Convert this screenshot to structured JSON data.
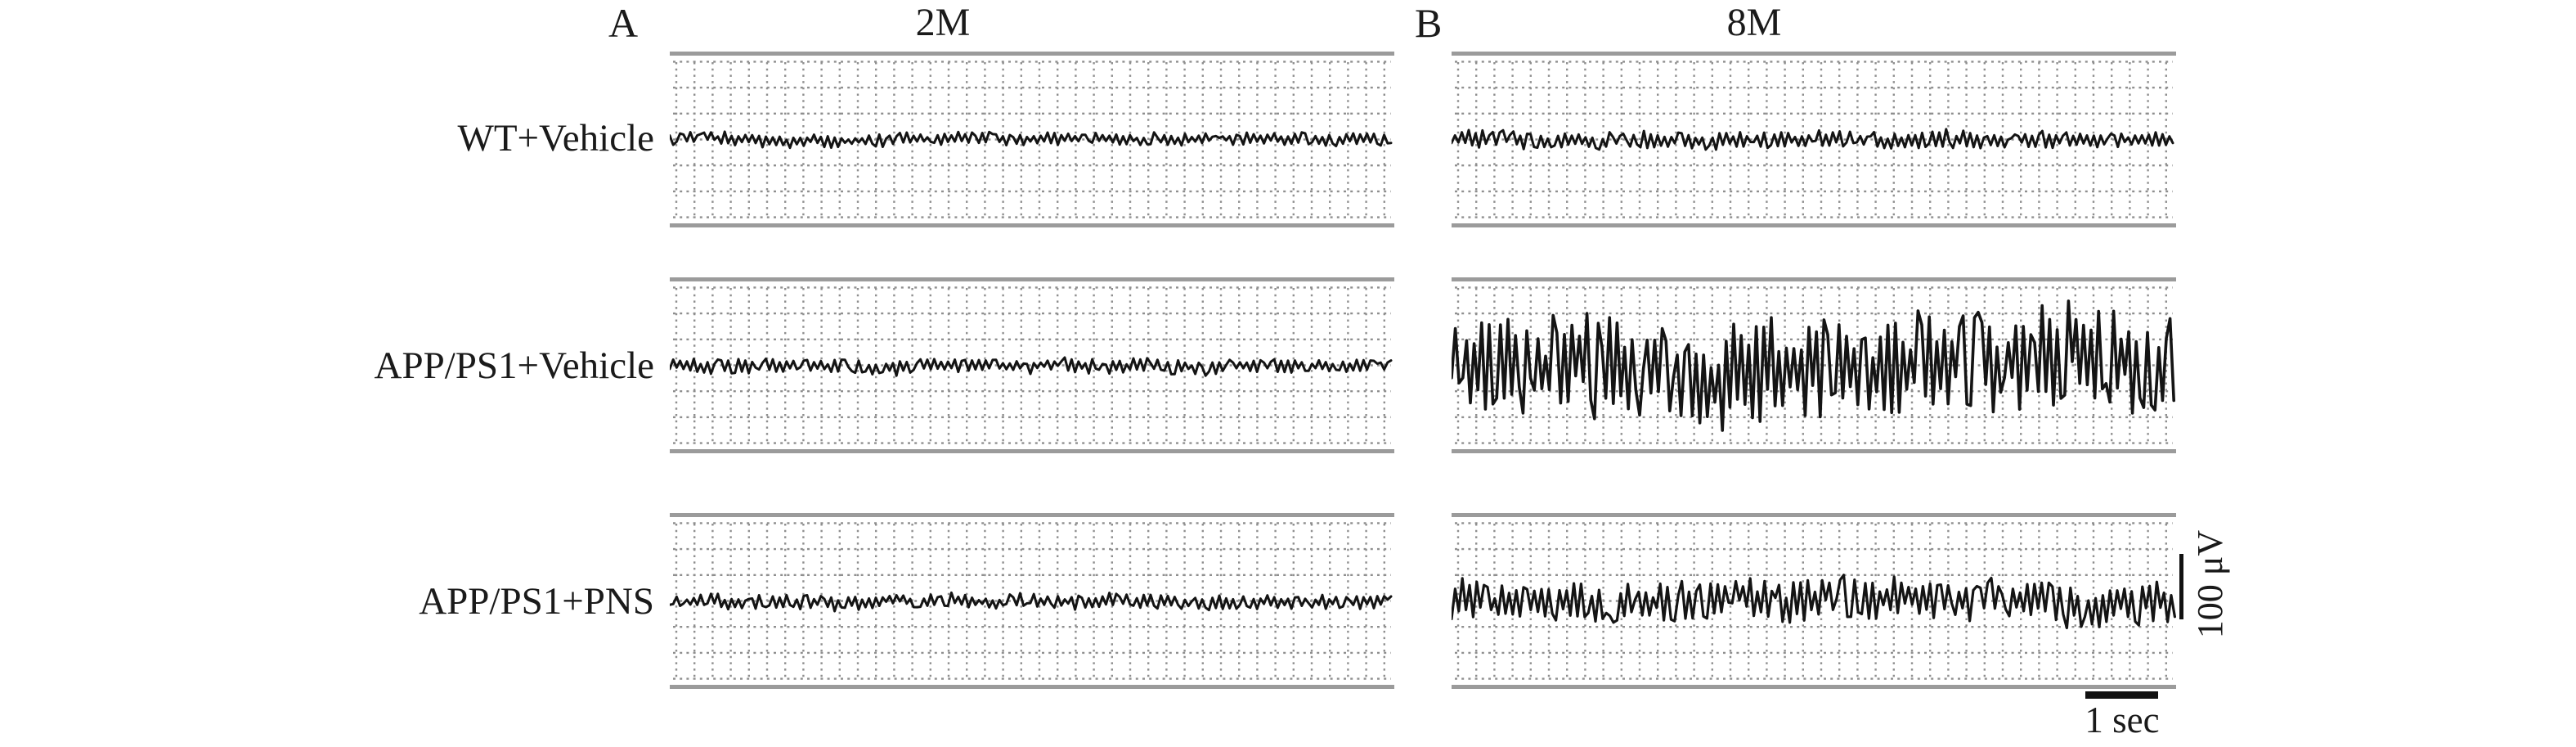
{
  "figure": {
    "section_a": "A",
    "section_b": "B",
    "column_titles": {
      "a": "2M",
      "b": "8M"
    },
    "row_labels": [
      "WT+Vehicle",
      "APP/PS1+Vehicle",
      "APP/PS1+PNS"
    ],
    "scale": {
      "vertical": "100 μV",
      "horizontal": "1 sec"
    }
  },
  "colors": {
    "background": "#ffffff",
    "text": "#1a1a1a",
    "trace": "#141414",
    "grid": "#8f8f8f",
    "panel_border": "#9b9b9b",
    "scale_bar": "#111111"
  },
  "chart_data": {
    "type": "line",
    "title": "",
    "description": "Representative EEG traces on dotted grid paper. Panel A = 2 months (2M), Panel B = 8 months (8M). Rows = treatment groups. Scale bars: 100 μV vertical, 1 sec horizontal (~10 sec shown per panel).",
    "columns": [
      "2M",
      "8M"
    ],
    "rows": [
      "WT+Vehicle",
      "APP/PS1+Vehicle",
      "APP/PS1+PNS"
    ],
    "x_scale_bar": {
      "label": "1 sec",
      "seconds": 1,
      "pixels": 89
    },
    "y_scale_bar": {
      "label": "100 μV",
      "microvolts": 100,
      "pixels": 80
    },
    "duration_sec_per_panel": 10,
    "grid": {
      "minor_x_sec": 0.25,
      "horizontal_divisions": 7
    },
    "series": [
      {
        "row": "WT+Vehicle",
        "column": "2M",
        "character": "low-amplitude background activity",
        "approx_peak_to_peak_uV": 20,
        "amp": 8,
        "dx": 4.2,
        "seed": 101,
        "strokeWidth": 3
      },
      {
        "row": "WT+Vehicle",
        "column": "8M",
        "character": "low-amplitude background activity",
        "approx_peak_to_peak_uV": 27,
        "amp": 11,
        "dx": 4.2,
        "seed": 202,
        "strokeWidth": 3
      },
      {
        "row": "APP/PS1+Vehicle",
        "column": "2M",
        "character": "low-amplitude background activity",
        "approx_peak_to_peak_uV": 22,
        "amp": 9,
        "dx": 4.2,
        "seed": 303,
        "strokeWidth": 3
      },
      {
        "row": "APP/PS1+Vehicle",
        "column": "8M",
        "character": "high-amplitude epileptiform spike discharges",
        "approx_peak_to_peak_uV": 155,
        "amp": 62,
        "dx": 4.6,
        "seed": 404,
        "strokeWidth": 3.6
      },
      {
        "row": "APP/PS1+PNS",
        "column": "2M",
        "character": "low-amplitude background activity",
        "approx_peak_to_peak_uV": 22,
        "amp": 9,
        "dx": 4.2,
        "seed": 505,
        "strokeWidth": 3
      },
      {
        "row": "APP/PS1+PNS",
        "column": "8M",
        "character": "moderate-amplitude activity, reduced vs vehicle",
        "approx_peak_to_peak_uV": 68,
        "amp": 27,
        "dx": 4.4,
        "seed": 606,
        "strokeWidth": 3.2
      }
    ]
  }
}
